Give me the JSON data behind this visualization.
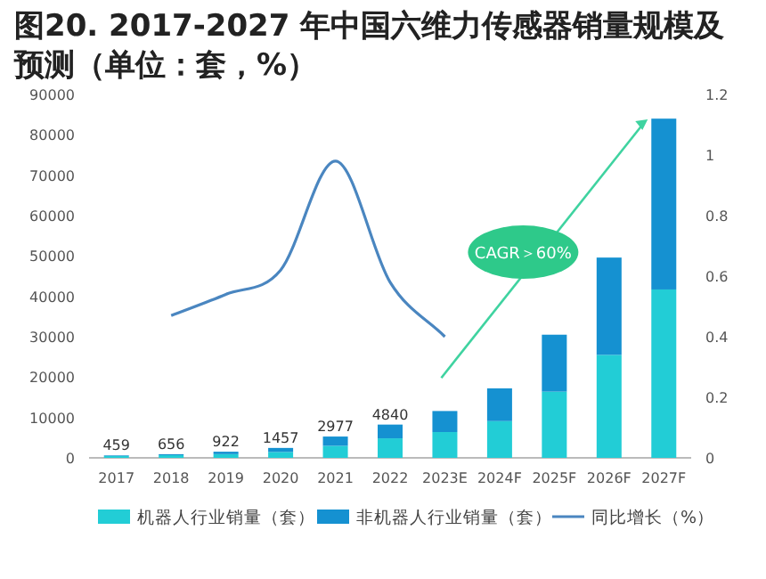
{
  "chart_data": {
    "type": "bar",
    "title": "图20. 2017-2027 年中国六维力传感器销量规模及预测（单位：套，%）",
    "categories": [
      "2017",
      "2018",
      "2019",
      "2020",
      "2021",
      "2022",
      "2023E",
      "2024F",
      "2025F",
      "2026F",
      "2027F"
    ],
    "series": [
      {
        "name": "机器人行业销量（套）",
        "color": "#22cdd6",
        "values": [
          459,
          656,
          922,
          1457,
          2977,
          4840,
          6400,
          9100,
          16400,
          25500,
          41700
        ],
        "value_labels": [
          "459",
          "656",
          "922",
          "1457",
          "2977",
          "4840",
          null,
          null,
          null,
          null,
          null
        ]
      },
      {
        "name": "非机器人行业销量（套）",
        "color": "#1591d1",
        "values": [
          150,
          250,
          600,
          1000,
          2300,
          3400,
          5200,
          8100,
          14100,
          24100,
          42300
        ]
      },
      {
        "name": "同比增长（%）",
        "type": "line",
        "axis": "y2",
        "color": "#4a86c0",
        "values": [
          null,
          0.47,
          0.54,
          0.62,
          0.98,
          0.58,
          0.4,
          null,
          null,
          null,
          null
        ]
      }
    ],
    "stacked": true,
    "ylim": [
      0,
      90000
    ],
    "yticks": [
      0,
      10000,
      20000,
      30000,
      40000,
      50000,
      60000,
      70000,
      80000,
      90000
    ],
    "y2lim": [
      0,
      1.2
    ],
    "y2ticks": [
      0,
      0.2,
      0.4,
      0.6,
      0.8,
      1,
      1.2
    ],
    "legend": "bottom",
    "annotations": [
      "CAGR＞60%"
    ]
  }
}
